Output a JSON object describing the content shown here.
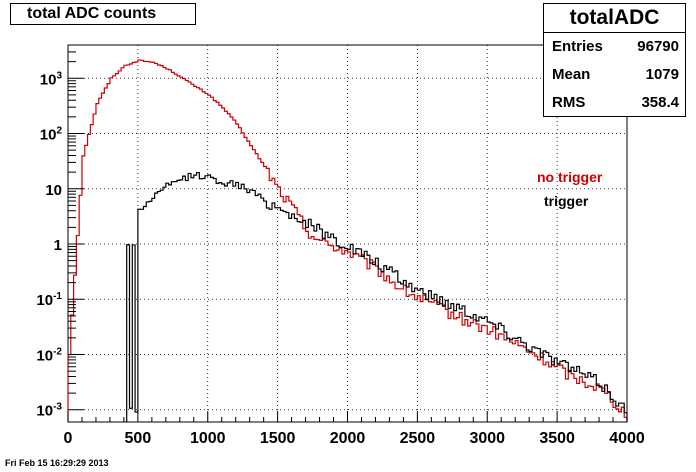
{
  "chart_data": {
    "type": "histogram",
    "title": "total ADC counts",
    "xlabel": "",
    "ylabel": "",
    "xlim": [
      0,
      4000
    ],
    "ylim": [
      0.0006,
      4000
    ],
    "yscale": "log",
    "grid": true,
    "x_ticks": [
      {
        "value": 0,
        "label": "0"
      },
      {
        "value": 500,
        "label": "500"
      },
      {
        "value": 1000,
        "label": "1000"
      },
      {
        "value": 1500,
        "label": "1500"
      },
      {
        "value": 2000,
        "label": "2000"
      },
      {
        "value": 2500,
        "label": "2500"
      },
      {
        "value": 3000,
        "label": "3000"
      },
      {
        "value": 3500,
        "label": "3500"
      },
      {
        "value": 4000,
        "label": "4000"
      }
    ],
    "y_ticks": [
      {
        "value": 0.001,
        "base": "10",
        "exp": "-3"
      },
      {
        "value": 0.01,
        "base": "10",
        "exp": "-2"
      },
      {
        "value": 0.1,
        "base": "10",
        "exp": "-1"
      },
      {
        "value": 1,
        "base": "1",
        "exp": ""
      },
      {
        "value": 10,
        "base": "10",
        "exp": ""
      },
      {
        "value": 100,
        "base": "10",
        "exp": "2"
      },
      {
        "value": 1000,
        "base": "10",
        "exp": "3"
      }
    ],
    "series": [
      {
        "name": "no trigger",
        "color": "#cc0000",
        "x": [
          0,
          100,
          200,
          300,
          400,
          500,
          600,
          700,
          800,
          900,
          1000,
          1100,
          1200,
          1300,
          1400,
          1500,
          1600,
          1700,
          1800,
          1900,
          2000,
          2200,
          2400,
          2600,
          2800,
          3000,
          3200,
          3400,
          3600,
          3800,
          4000
        ],
        "y": [
          0.01,
          40,
          350,
          1000,
          1700,
          2100,
          1950,
          1500,
          1050,
          720,
          500,
          290,
          150,
          60,
          25,
          9.5,
          4.5,
          1.8,
          1.1,
          0.9,
          0.7,
          0.35,
          0.14,
          0.08,
          0.045,
          0.028,
          0.015,
          0.008,
          0.004,
          0.0025,
          0.0008
        ]
      },
      {
        "name": "trigger",
        "color": "#000000",
        "x": [
          420,
          440,
          460,
          480,
          500,
          600,
          700,
          800,
          900,
          1000,
          1100,
          1200,
          1300,
          1400,
          1500,
          1600,
          1700,
          1800,
          1900,
          2000,
          2200,
          2400,
          2600,
          2800,
          3000,
          3200,
          3400,
          3600,
          3800,
          4000
        ],
        "y": [
          1,
          0.001,
          1,
          0.001,
          4,
          7,
          11,
          15,
          18,
          16,
          13,
          12,
          9,
          6,
          4.5,
          3.3,
          2.4,
          1.7,
          1.2,
          0.9,
          0.45,
          0.2,
          0.11,
          0.07,
          0.04,
          0.02,
          0.01,
          0.0055,
          0.003,
          0.0009
        ]
      }
    ]
  },
  "stats": {
    "title": "totalADC",
    "rows": [
      {
        "label": "Entries",
        "value": "96790"
      },
      {
        "label": "Mean",
        "value": "1079"
      },
      {
        "label": "RMS",
        "value": "358.4"
      }
    ]
  },
  "legend": {
    "no_trigger": {
      "label": "no trigger",
      "color": "#cc0000"
    },
    "trigger": {
      "label": "trigger",
      "color": "#000000"
    }
  },
  "footer": "Fri Feb 15 16:29:29 2013"
}
